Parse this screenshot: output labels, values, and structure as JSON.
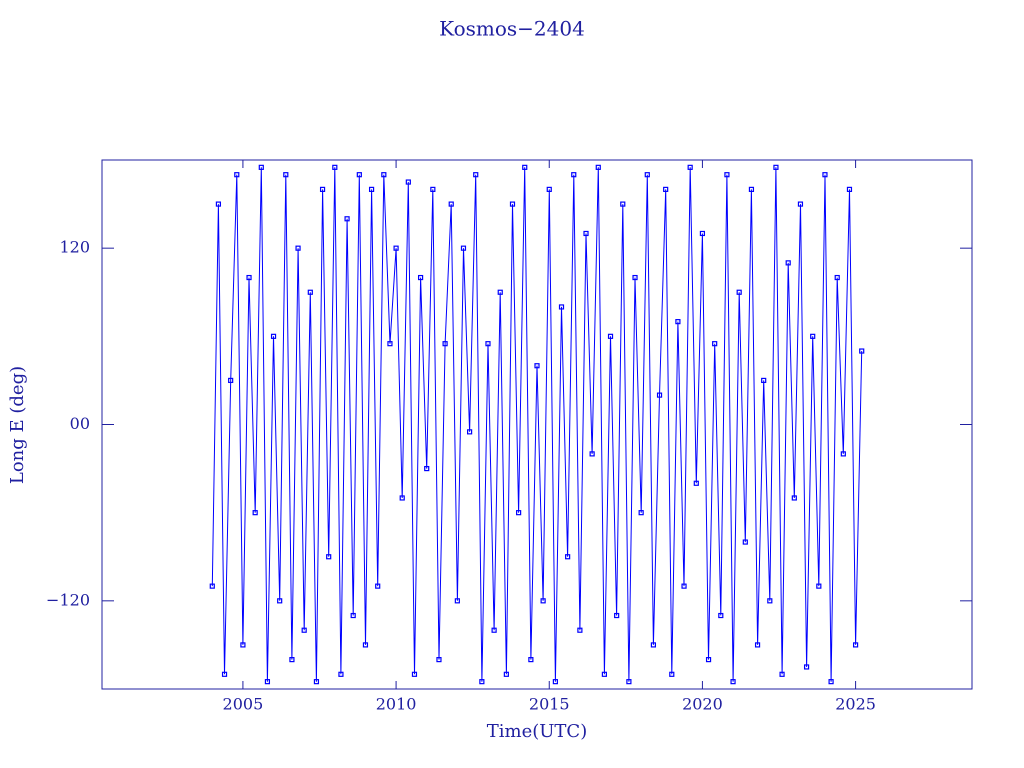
{
  "chart_data": {
    "type": "line",
    "title": "Kosmos−2404",
    "x_label": "Time(UTC)",
    "y_label": "Long E (deg)",
    "xlim": [
      2000.4,
      2028.8
    ],
    "ylim": [
      -180,
      180
    ],
    "xticks": [
      2005,
      2010,
      2015,
      2020,
      2025
    ],
    "yticks": [
      {
        "value": -120,
        "label": "−120"
      },
      {
        "value": 0,
        "label": "00"
      },
      120
    ],
    "axis_color": "#2020a0",
    "series": [
      {
        "color": "#0000ff",
        "x": [
          2004.0,
          2004.2,
          2004.4,
          2004.6,
          2004.8,
          2005.0,
          2005.2,
          2005.4,
          2005.6,
          2005.8,
          2006.0,
          2006.2,
          2006.4,
          2006.6,
          2006.8,
          2007.0,
          2007.2,
          2007.4,
          2007.6,
          2007.8,
          2008.0,
          2008.2,
          2008.4,
          2008.6,
          2008.8,
          2009.0,
          2009.2,
          2009.4,
          2009.6,
          2009.8,
          2010.0,
          2010.2,
          2010.4,
          2010.6,
          2010.8,
          2011.0,
          2011.2,
          2011.4,
          2011.6,
          2011.8,
          2012.0,
          2012.2,
          2012.4,
          2012.6,
          2012.8,
          2013.0,
          2013.2,
          2013.4,
          2013.6,
          2013.8,
          2014.0,
          2014.2,
          2014.4,
          2014.6,
          2014.8,
          2015.0,
          2015.2,
          2015.4,
          2015.6,
          2015.8,
          2016.0,
          2016.2,
          2016.4,
          2016.6,
          2016.8,
          2017.0,
          2017.2,
          2017.4,
          2017.6,
          2017.8,
          2018.0,
          2018.2,
          2018.4,
          2018.6,
          2018.8,
          2019.0,
          2019.2,
          2019.4,
          2019.6,
          2019.8,
          2020.0,
          2020.2,
          2020.4,
          2020.6,
          2020.8,
          2021.0,
          2021.2,
          2021.4,
          2021.6,
          2021.8,
          2022.0,
          2022.2,
          2022.4,
          2022.6,
          2022.8,
          2023.0,
          2023.2,
          2023.4,
          2023.6,
          2023.8,
          2024.0,
          2024.2,
          2024.4,
          2024.6,
          2024.8,
          2025.0,
          2025.2
        ],
        "values": [
          -110,
          150,
          -170,
          30,
          170,
          -150,
          100,
          -60,
          175,
          -175,
          60,
          -120,
          170,
          -160,
          120,
          -140,
          90,
          -175,
          160,
          -90,
          175,
          -170,
          140,
          -130,
          170,
          -150,
          160,
          -110,
          170,
          55,
          120,
          -50,
          165,
          -170,
          100,
          -30,
          160,
          -160,
          55,
          150,
          -120,
          120,
          -5,
          170,
          -175,
          55,
          -140,
          90,
          -170,
          150,
          -60,
          175,
          -160,
          40,
          -120,
          160,
          -175,
          80,
          -90,
          170,
          -140,
          130,
          -20,
          175,
          -170,
          60,
          -130,
          150,
          -175,
          100,
          -60,
          170,
          -150,
          20,
          160,
          -170,
          70,
          -110,
          175,
          -40,
          130,
          -160,
          55,
          -130,
          170,
          -175,
          90,
          -80,
          160,
          -150,
          30,
          -120,
          175,
          -170,
          110,
          -50,
          150,
          -165,
          60,
          -110,
          170,
          -175,
          100,
          -20,
          160,
          -150,
          50
        ]
      }
    ]
  }
}
